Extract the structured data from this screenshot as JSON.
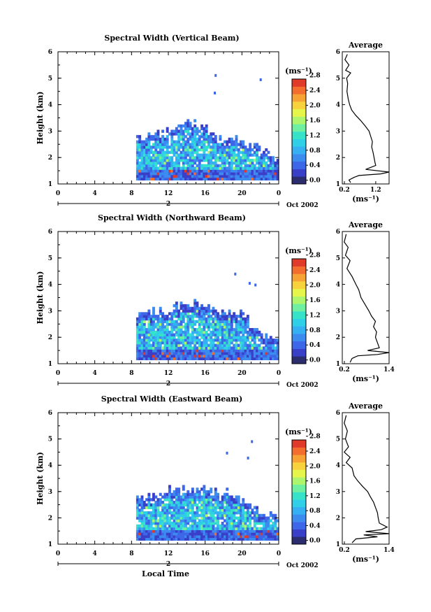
{
  "colors": {
    "scale": [
      "#2b2d6e",
      "#3a3fc8",
      "#3d67e8",
      "#3c8cf0",
      "#35b0f2",
      "#2fcfe8",
      "#36e3c8",
      "#6fefa0",
      "#aef56e",
      "#e6f54a",
      "#f7d23c",
      "#f6a234",
      "#f26d2e",
      "#e03a2a"
    ],
    "background": "#ffffff",
    "ink": "#000000"
  },
  "chart_data": [
    {
      "type": "heatmap",
      "title": "Spectral Width (Vertical Beam)",
      "ylabel": "Height (km)",
      "xlabel": "",
      "x_ticks": [
        "0",
        "4",
        "8",
        "12",
        "16",
        "20",
        "0"
      ],
      "y_ticks": [
        "1",
        "2",
        "3",
        "4",
        "5",
        "6"
      ],
      "xlim": [
        0,
        24
      ],
      "ylim": [
        1,
        6
      ],
      "date_marker": "2",
      "date_label": "Oct 2002",
      "colorbar": {
        "unit": "(ms⁻¹)",
        "ticks": [
          "0.0",
          "0.4",
          "0.8",
          "1.2",
          "1.6",
          "2.0",
          "2.4",
          "2.8"
        ],
        "range": [
          0.0,
          2.8
        ]
      },
      "data_region": {
        "x_start": 8.5,
        "x_end": 24,
        "y_min": 1.15,
        "top_envelope": [
          [
            8.5,
            2.7
          ],
          [
            10,
            2.8
          ],
          [
            12,
            3.0
          ],
          [
            14,
            3.3
          ],
          [
            16,
            3.0
          ],
          [
            17.5,
            2.6
          ],
          [
            19,
            2.8
          ],
          [
            20.5,
            2.4
          ],
          [
            22,
            2.3
          ],
          [
            23,
            2.0
          ],
          [
            24,
            1.9
          ]
        ]
      },
      "average_profile": {
        "title": "Average",
        "xlabel": "(ms⁻¹)",
        "x_ticks": [
          "0.2",
          "1.2"
        ],
        "xlim": [
          0.2,
          1.6
        ],
        "y_ticks": [
          "1",
          "2",
          "3",
          "4",
          "5",
          "6"
        ],
        "points": [
          [
            0.35,
            5.9
          ],
          [
            0.28,
            5.7
          ],
          [
            0.4,
            5.5
          ],
          [
            0.3,
            5.3
          ],
          [
            0.45,
            5.2
          ],
          [
            0.33,
            5.0
          ],
          [
            0.36,
            4.8
          ],
          [
            0.34,
            4.5
          ],
          [
            0.38,
            4.2
          ],
          [
            0.42,
            4.0
          ],
          [
            0.48,
            3.8
          ],
          [
            0.6,
            3.6
          ],
          [
            0.75,
            3.4
          ],
          [
            0.88,
            3.2
          ],
          [
            1.0,
            3.0
          ],
          [
            1.05,
            2.8
          ],
          [
            1.1,
            2.6
          ],
          [
            1.08,
            2.4
          ],
          [
            1.12,
            2.2
          ],
          [
            1.15,
            2.0
          ],
          [
            1.18,
            1.8
          ],
          [
            1.2,
            1.7
          ],
          [
            0.9,
            1.55
          ],
          [
            1.6,
            1.45
          ],
          [
            1.35,
            1.38
          ],
          [
            0.7,
            1.32
          ],
          [
            0.55,
            1.25
          ],
          [
            0.4,
            1.15
          ],
          [
            0.45,
            1.05
          ]
        ]
      }
    },
    {
      "type": "heatmap",
      "title": "Spectral Width (Northward Beam)",
      "ylabel": "Height (km)",
      "xlabel": "",
      "x_ticks": [
        "0",
        "4",
        "8",
        "12",
        "16",
        "20",
        "0"
      ],
      "y_ticks": [
        "1",
        "2",
        "3",
        "4",
        "5",
        "6"
      ],
      "xlim": [
        0,
        24
      ],
      "ylim": [
        1,
        6
      ],
      "date_marker": "2",
      "date_label": "Oct 2002",
      "colorbar": {
        "unit": "(ms⁻¹)",
        "ticks": [
          "0.0",
          "0.4",
          "0.8",
          "1.2",
          "1.6",
          "2.0",
          "2.4",
          "2.8"
        ],
        "range": [
          0.0,
          2.8
        ]
      },
      "data_region": {
        "x_start": 8.5,
        "x_end": 24,
        "y_min": 1.15,
        "top_envelope": [
          [
            8.5,
            2.7
          ],
          [
            10,
            2.9
          ],
          [
            12,
            3.0
          ],
          [
            14,
            3.3
          ],
          [
            16,
            3.1
          ],
          [
            18,
            2.9
          ],
          [
            20,
            2.8
          ],
          [
            21.5,
            2.3
          ],
          [
            23,
            1.9
          ],
          [
            24,
            1.9
          ]
        ]
      },
      "average_profile": {
        "title": "Average",
        "xlabel": "(ms⁻¹)",
        "x_ticks": [
          "0.2",
          "1.4"
        ],
        "xlim": [
          0.2,
          1.4
        ],
        "y_ticks": [
          "1",
          "2",
          "3",
          "4",
          "5",
          "6"
        ],
        "points": [
          [
            0.3,
            5.9
          ],
          [
            0.25,
            5.6
          ],
          [
            0.35,
            5.4
          ],
          [
            0.28,
            5.1
          ],
          [
            0.4,
            4.9
          ],
          [
            0.32,
            4.6
          ],
          [
            0.45,
            4.3
          ],
          [
            0.55,
            4.0
          ],
          [
            0.62,
            3.8
          ],
          [
            0.68,
            3.5
          ],
          [
            0.8,
            3.2
          ],
          [
            0.88,
            3.0
          ],
          [
            0.95,
            2.8
          ],
          [
            1.05,
            2.6
          ],
          [
            1.0,
            2.4
          ],
          [
            1.08,
            2.2
          ],
          [
            1.05,
            2.0
          ],
          [
            1.1,
            1.8
          ],
          [
            1.15,
            1.6
          ],
          [
            0.85,
            1.5
          ],
          [
            1.4,
            1.42
          ],
          [
            1.1,
            1.35
          ],
          [
            0.6,
            1.3
          ],
          [
            0.45,
            1.2
          ],
          [
            0.4,
            1.05
          ]
        ]
      }
    },
    {
      "type": "heatmap",
      "title": "Spectral Width (Eastward Beam)",
      "ylabel": "Height (km)",
      "xlabel": "Local Time",
      "x_ticks": [
        "0",
        "4",
        "8",
        "12",
        "16",
        "20",
        "0"
      ],
      "y_ticks": [
        "1",
        "2",
        "3",
        "4",
        "5",
        "6"
      ],
      "xlim": [
        0,
        24
      ],
      "ylim": [
        1,
        6
      ],
      "date_marker": "2",
      "date_label": "Oct 2002",
      "colorbar": {
        "unit": "(ms⁻¹)",
        "ticks": [
          "0.0",
          "0.4",
          "0.8",
          "1.2",
          "1.6",
          "2.0",
          "2.4",
          "2.8"
        ],
        "range": [
          0.0,
          2.8
        ]
      },
      "data_region": {
        "x_start": 8.5,
        "x_end": 24,
        "y_min": 1.15,
        "top_envelope": [
          [
            8.5,
            2.7
          ],
          [
            10,
            2.8
          ],
          [
            12,
            3.0
          ],
          [
            14,
            3.0
          ],
          [
            15.5,
            3.2
          ],
          [
            17,
            2.9
          ],
          [
            18.5,
            3.0
          ],
          [
            20,
            2.5
          ],
          [
            22,
            2.2
          ],
          [
            23,
            2.1
          ],
          [
            24,
            2.0
          ]
        ]
      },
      "average_profile": {
        "title": "Average",
        "xlabel": "(ms⁻¹)",
        "x_ticks": [
          "0.2",
          "1.4"
        ],
        "xlim": [
          0.2,
          1.4
        ],
        "y_ticks": [
          "1",
          "2",
          "3",
          "4",
          "5",
          "6"
        ],
        "points": [
          [
            0.3,
            5.9
          ],
          [
            0.25,
            5.6
          ],
          [
            0.33,
            5.3
          ],
          [
            0.28,
            5.0
          ],
          [
            0.36,
            4.7
          ],
          [
            0.25,
            4.5
          ],
          [
            0.4,
            4.3
          ],
          [
            0.3,
            4.1
          ],
          [
            0.45,
            3.9
          ],
          [
            0.5,
            3.6
          ],
          [
            0.6,
            3.4
          ],
          [
            0.72,
            3.2
          ],
          [
            0.85,
            3.0
          ],
          [
            0.92,
            2.8
          ],
          [
            1.0,
            2.6
          ],
          [
            1.05,
            2.4
          ],
          [
            1.1,
            2.2
          ],
          [
            1.12,
            2.0
          ],
          [
            1.15,
            1.8
          ],
          [
            1.35,
            1.65
          ],
          [
            1.2,
            1.55
          ],
          [
            0.8,
            1.48
          ],
          [
            1.4,
            1.4
          ],
          [
            0.75,
            1.35
          ],
          [
            1.1,
            1.28
          ],
          [
            0.55,
            1.2
          ],
          [
            0.45,
            1.05
          ]
        ]
      }
    }
  ]
}
